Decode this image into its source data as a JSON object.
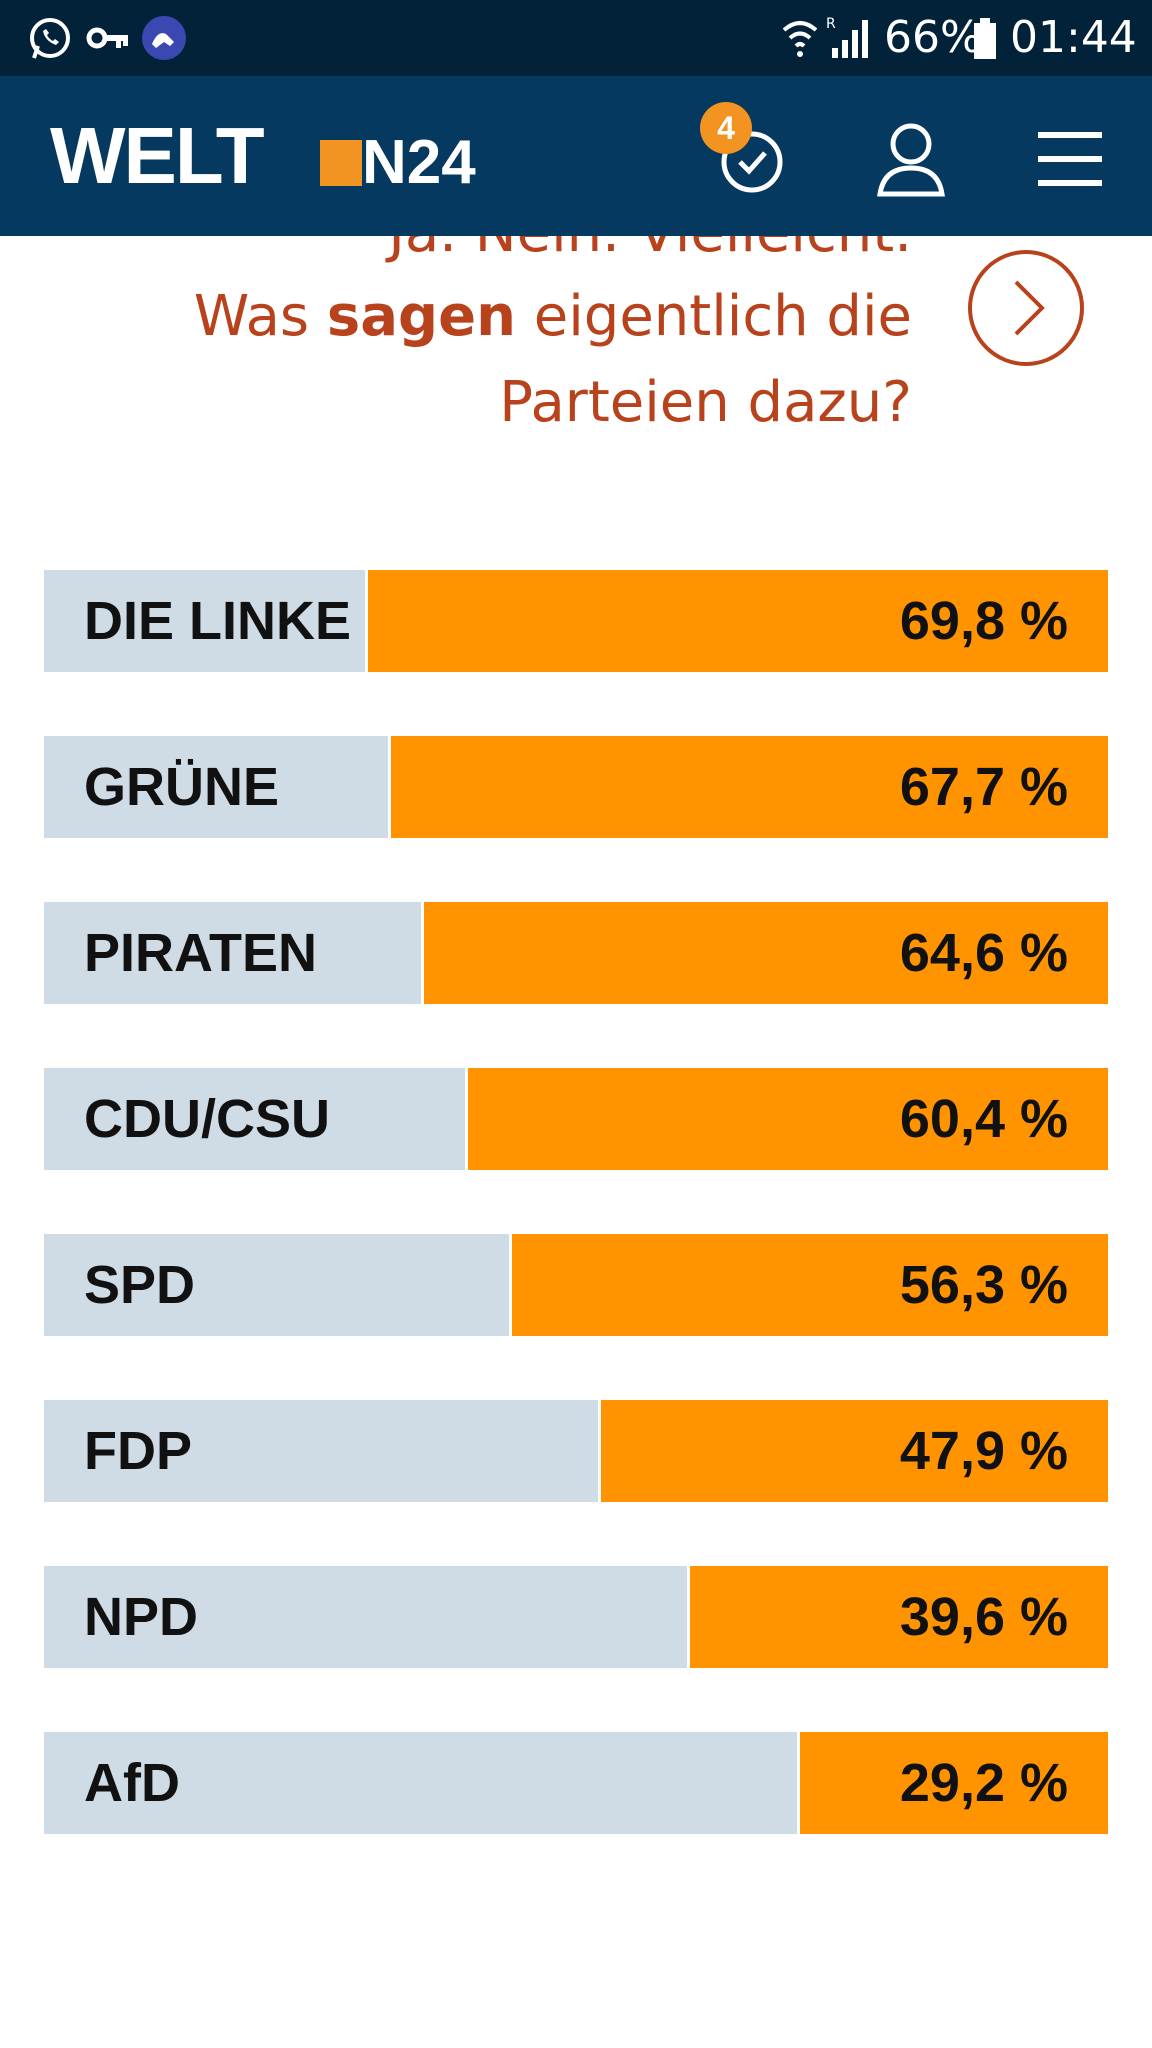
{
  "status_bar": {
    "icons": [
      "whatsapp-icon",
      "key-icon",
      "app-icon"
    ],
    "battery": "66%",
    "time": "01:44"
  },
  "header": {
    "logo_main": "WELT",
    "logo_sub": "N24",
    "badge_count": "4",
    "icons": [
      "history-icon",
      "account-icon",
      "menu-icon"
    ]
  },
  "teaser": {
    "line1": "Ja. Nein. Vielleicht.",
    "line2_pre": "Was ",
    "line2_bold": "sagen",
    "line2_post": " eigentlich die",
    "line3": "Parteien dazu?",
    "accent": "#b8421c"
  },
  "colors": {
    "bar": "#ff9300",
    "track": "#cfdce6"
  },
  "chart_data": {
    "type": "bar",
    "categories": [
      "DIE LINKE",
      "GRÜNE",
      "PIRATEN",
      "CDU/CSU",
      "SPD",
      "FDP",
      "NPD",
      "AfD"
    ],
    "values": [
      69.8,
      67.7,
      64.6,
      60.4,
      56.3,
      47.9,
      39.6,
      29.2
    ],
    "value_labels": [
      "69,8 %",
      "67,7 %",
      "64,6 %",
      "60,4 %",
      "56,3 %",
      "47,9 %",
      "39,6 %",
      "29,2 %"
    ],
    "ylim": [
      0,
      100
    ],
    "grid": false,
    "legend": "none"
  }
}
